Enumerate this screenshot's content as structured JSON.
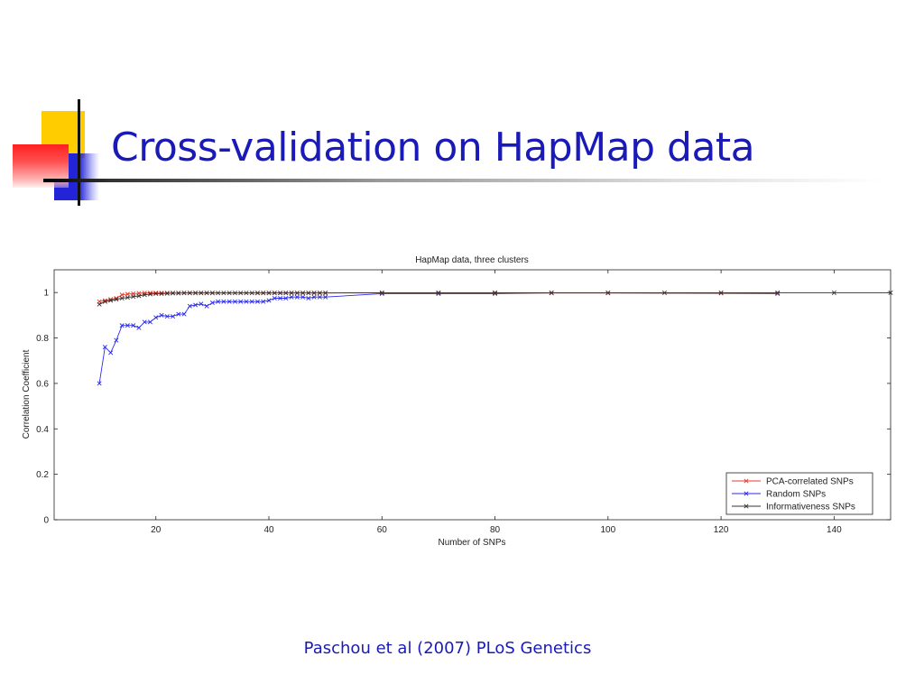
{
  "slide": {
    "title": "Cross-validation on HapMap data",
    "citation": "Paschou et al (2007) PLoS Genetics"
  },
  "colors": {
    "title_text": "#1a1ab8",
    "series_pca": "#e83a2a",
    "series_random": "#2a2aee",
    "series_info": "#333333"
  },
  "chart_data": {
    "type": "line",
    "title": "HapMap data, three clusters",
    "xlabel": "Number of SNPs",
    "ylabel": "Correlation Coefficient",
    "xlim": [
      2,
      150
    ],
    "ylim": [
      0,
      1.1
    ],
    "xticks": [
      20,
      40,
      60,
      80,
      100,
      120,
      140
    ],
    "yticks": [
      0,
      0.2,
      0.4,
      0.6,
      0.8,
      1
    ],
    "grid": false,
    "legend_position": "bottom-right",
    "marker": "x",
    "series": [
      {
        "name": "PCA-correlated SNPs",
        "color": "#e83a2a",
        "x": [
          10,
          11,
          12,
          13,
          14,
          15,
          16,
          17,
          18,
          19,
          20,
          21,
          22,
          23,
          24,
          25,
          26,
          27,
          28,
          29,
          30,
          38,
          39,
          40,
          41,
          42,
          43,
          44,
          45,
          46,
          47,
          48,
          49,
          50,
          60,
          70,
          80,
          90,
          100,
          120,
          130
        ],
        "y": [
          0.96,
          0.965,
          0.97,
          0.975,
          0.99,
          0.993,
          0.995,
          0.997,
          0.998,
          0.998,
          0.998,
          0.998,
          0.998,
          0.998,
          0.998,
          0.998,
          0.998,
          0.998,
          0.998,
          0.998,
          0.998,
          0.998,
          0.998,
          0.998,
          0.998,
          0.998,
          0.998,
          0.998,
          0.998,
          0.998,
          0.998,
          0.998,
          0.998,
          0.998,
          0.998,
          0.998,
          0.998,
          0.998,
          0.998,
          0.997,
          0.997
        ]
      },
      {
        "name": "Random SNPs",
        "color": "#2a2aee",
        "x": [
          10,
          11,
          12,
          13,
          14,
          15,
          16,
          17,
          18,
          19,
          20,
          21,
          22,
          23,
          24,
          25,
          26,
          27,
          28,
          29,
          30,
          31,
          32,
          33,
          34,
          35,
          36,
          37,
          38,
          39,
          40,
          41,
          42,
          43,
          44,
          45,
          46,
          47,
          48,
          49,
          50,
          60,
          70,
          80,
          90,
          100,
          130
        ],
        "y": [
          0.6,
          0.76,
          0.735,
          0.79,
          0.855,
          0.855,
          0.855,
          0.845,
          0.87,
          0.87,
          0.89,
          0.9,
          0.895,
          0.895,
          0.905,
          0.905,
          0.94,
          0.945,
          0.95,
          0.94,
          0.955,
          0.96,
          0.96,
          0.96,
          0.96,
          0.96,
          0.96,
          0.96,
          0.96,
          0.96,
          0.965,
          0.975,
          0.975,
          0.975,
          0.98,
          0.98,
          0.98,
          0.975,
          0.98,
          0.98,
          0.98,
          0.995,
          0.995,
          0.995,
          0.998,
          0.998,
          0.995
        ]
      },
      {
        "name": "Informativeness SNPs",
        "color": "#333333",
        "x": [
          10,
          11,
          12,
          13,
          14,
          15,
          16,
          17,
          18,
          19,
          20,
          21,
          22,
          23,
          24,
          25,
          26,
          27,
          28,
          29,
          30,
          31,
          32,
          33,
          34,
          35,
          36,
          37,
          38,
          39,
          40,
          41,
          42,
          43,
          44,
          45,
          46,
          47,
          48,
          49,
          50,
          60,
          70,
          80,
          90,
          100,
          110,
          120,
          130,
          140,
          150
        ],
        "y": [
          0.948,
          0.96,
          0.965,
          0.97,
          0.975,
          0.978,
          0.982,
          0.985,
          0.99,
          0.993,
          0.995,
          0.995,
          0.996,
          0.997,
          0.997,
          0.998,
          0.998,
          0.998,
          0.998,
          0.998,
          0.998,
          0.998,
          0.998,
          0.998,
          0.998,
          0.998,
          0.998,
          0.998,
          0.998,
          0.998,
          0.998,
          0.998,
          0.998,
          0.998,
          0.998,
          0.998,
          0.998,
          0.998,
          0.998,
          0.998,
          0.998,
          0.999,
          0.999,
          0.999,
          0.999,
          0.999,
          0.999,
          0.999,
          0.999,
          0.999,
          0.999
        ]
      }
    ]
  }
}
